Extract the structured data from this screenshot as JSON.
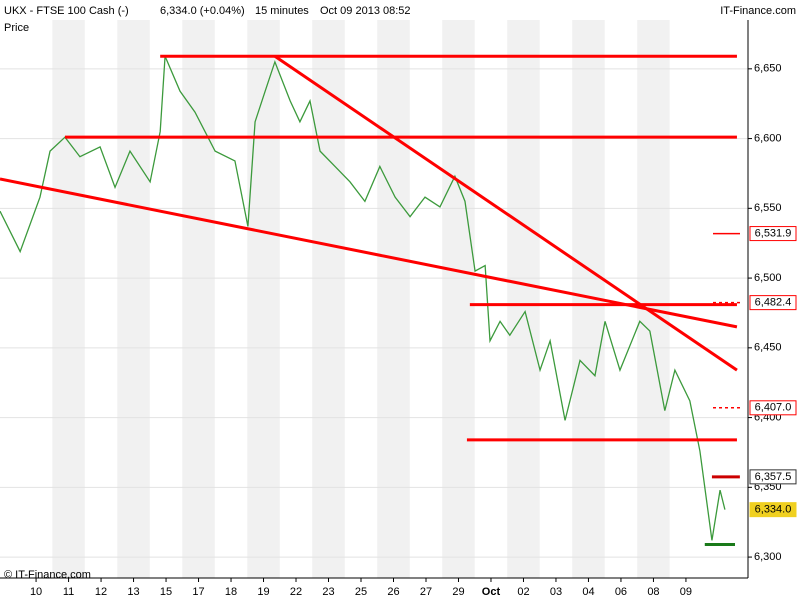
{
  "header": {
    "instrument": "UKX - FTSE 100 Cash (-)",
    "quote": "6,334.0 (+0.04%)",
    "interval": "15 minutes",
    "timestamp": "Oct 09 2013 08:52",
    "brand": "IT-Finance.com"
  },
  "chart_data": {
    "type": "line",
    "y_label": "Price",
    "copyright": "© IT-Finance.com",
    "x": [
      -1.11,
      -0.49,
      0.12,
      0.43,
      0.89,
      1.35,
      1.97,
      2.43,
      2.89,
      3.51,
      3.82,
      3.97,
      4.43,
      4.89,
      5.51,
      6.12,
      6.52,
      6.74,
      7.05,
      7.35,
      7.82,
      8.12,
      8.43,
      8.74,
      9.2,
      9.66,
      10.12,
      10.58,
      11.05,
      11.51,
      11.97,
      12.43,
      12.89,
      13.2,
      13.51,
      13.82,
      13.97,
      14.28,
      14.58,
      15.05,
      15.51,
      15.82,
      16.28,
      16.74,
      17.2,
      17.51,
      17.97,
      18.58,
      18.89,
      19.35,
      19.66,
      20.12,
      20.43,
      20.8,
      21.05,
      21.2
    ],
    "series": [
      {
        "name": "Price",
        "color": "#3c9a3c",
        "values": [
          6548,
          6519,
          6558,
          6591,
          6601,
          6587,
          6594,
          6565,
          6591,
          6569,
          6605,
          6659,
          6634,
          6619,
          6591,
          6584,
          6537,
          6612,
          6634,
          6655,
          6627,
          6612,
          6627,
          6591,
          6580,
          6569,
          6555,
          6580,
          6558,
          6544,
          6558,
          6551,
          6573,
          6555,
          6505,
          6509,
          6455,
          6469,
          6459,
          6476,
          6434,
          6455,
          6398,
          6441,
          6430,
          6469,
          6434,
          6469,
          6462,
          6405,
          6434,
          6412,
          6376,
          6312,
          6348,
          6334
        ]
      }
    ],
    "xlim": [
      -1.11,
      21.91
    ],
    "ylim": [
      6285,
      6685
    ],
    "xticks": [
      {
        "value": 0,
        "label": "10"
      },
      {
        "value": 1,
        "label": "11"
      },
      {
        "value": 2,
        "label": "12"
      },
      {
        "value": 3,
        "label": "13"
      },
      {
        "value": 4,
        "label": "15"
      },
      {
        "value": 5,
        "label": "17"
      },
      {
        "value": 6,
        "label": "18"
      },
      {
        "value": 7,
        "label": "19"
      },
      {
        "value": 8,
        "label": "22"
      },
      {
        "value": 9,
        "label": "23"
      },
      {
        "value": 10,
        "label": "25"
      },
      {
        "value": 11,
        "label": "26"
      },
      {
        "value": 12,
        "label": "27"
      },
      {
        "value": 13,
        "label": "29"
      },
      {
        "value": 14,
        "label": "Oct"
      },
      {
        "value": 15,
        "label": "02"
      },
      {
        "value": 16,
        "label": "03"
      },
      {
        "value": 17,
        "label": "04"
      },
      {
        "value": 18,
        "label": "06"
      },
      {
        "value": 19,
        "label": "08"
      },
      {
        "value": 20,
        "label": "09"
      }
    ],
    "yticks": [
      {
        "value": 6300,
        "label": "6,300"
      },
      {
        "value": 6350,
        "label": "6,350"
      },
      {
        "value": 6400,
        "label": "6,400"
      },
      {
        "value": 6450,
        "label": "6,450"
      },
      {
        "value": 6500,
        "label": "6,500"
      },
      {
        "value": 6550,
        "label": "6,550"
      },
      {
        "value": 6600,
        "label": "6,600"
      },
      {
        "value": 6650,
        "label": "6,650"
      }
    ],
    "grid": true,
    "trend_lines": [
      {
        "x": [
          3.82,
          21.57
        ],
        "y": [
          6659,
          6659
        ],
        "color": "#ff0000"
      },
      {
        "x": [
          0.89,
          21.57
        ],
        "y": [
          6601,
          6601
        ],
        "color": "#ff0000"
      },
      {
        "x": [
          -1.11,
          21.57
        ],
        "y": [
          6571,
          6465
        ],
        "color": "#ff0000"
      },
      {
        "x": [
          7.35,
          21.57
        ],
        "y": [
          6659,
          6434
        ],
        "color": "#ff0000"
      },
      {
        "x": [
          13.35,
          21.57
        ],
        "y": [
          6481,
          6481
        ],
        "color": "#ff0000"
      },
      {
        "x": [
          13.26,
          21.57
        ],
        "y": [
          6384,
          6384
        ],
        "color": "#ff0000"
      },
      {
        "x": [
          20.58,
          21.51
        ],
        "y": [
          6309,
          6309
        ],
        "color": "#1a7a1a"
      },
      {
        "x": [
          20.8,
          21.66
        ],
        "y": [
          6357.5,
          6357.5
        ],
        "color": "#cc0000"
      }
    ],
    "price_levels": [
      {
        "value": 6531.9,
        "label": "6,531.9",
        "style": "solid",
        "color": "#ff0000"
      },
      {
        "value": 6482.4,
        "label": "6,482.4",
        "style": "dashed",
        "color": "#ff0000"
      },
      {
        "value": 6407.0,
        "label": "6,407.0",
        "style": "dashed",
        "color": "#ff0000"
      },
      {
        "value": 6357.5,
        "label": "6,357.5",
        "style": "box",
        "color": "#333333"
      },
      {
        "value": 6334.0,
        "label": "6,334.0",
        "style": "current",
        "color": "#f0d020"
      }
    ]
  }
}
